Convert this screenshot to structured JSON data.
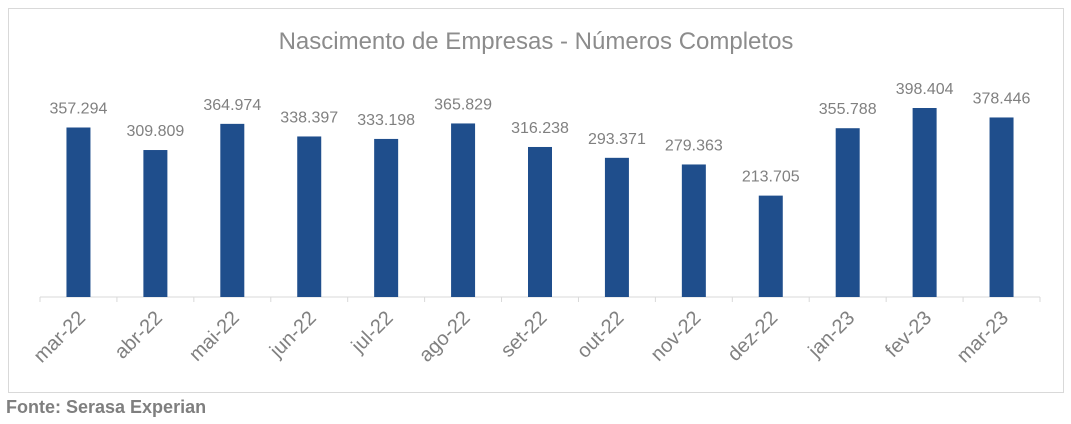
{
  "chart_data": {
    "type": "bar",
    "title": "Nascimento de Empresas - Números Completos",
    "categories": [
      "mar-22",
      "abr-22",
      "mai-22",
      "jun-22",
      "jul-22",
      "ago-22",
      "set-22",
      "out-22",
      "nov-22",
      "dez-22",
      "jan-23",
      "fev-23",
      "mar-23"
    ],
    "values": [
      357294,
      309809,
      364974,
      338397,
      333198,
      365829,
      316238,
      293371,
      279363,
      213705,
      355788,
      398404,
      378446
    ],
    "data_labels": [
      "357.294",
      "309.809",
      "364.974",
      "338.397",
      "333.198",
      "365.829",
      "316.238",
      "293.371",
      "279.363",
      "213.705",
      "355.788",
      "398.404",
      "378.446"
    ],
    "ylim": [
      0,
      420000
    ],
    "grid": false,
    "legend": "none",
    "colors": {
      "bar": "#1f4e8c",
      "text": "#808080",
      "axis": "#d9d9d9"
    }
  },
  "source": "Fonte: Serasa Experian"
}
